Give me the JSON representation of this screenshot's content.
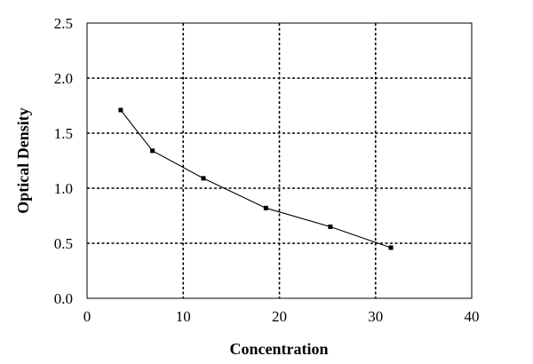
{
  "chart_data": {
    "type": "line",
    "title": "",
    "xlabel": "Concentration",
    "ylabel": "Optical Density",
    "xlim": [
      0,
      40
    ],
    "ylim": [
      0,
      2.5
    ],
    "x_ticks": [
      "0",
      "10",
      "20",
      "30",
      "40"
    ],
    "y_ticks": [
      "0.0",
      "0.5",
      "1.0",
      "1.5",
      "2.0",
      "2.5"
    ],
    "grid": true,
    "legend": false,
    "series": [
      {
        "x": [
          3.5,
          6.8,
          12.1,
          18.6,
          25.3,
          31.6
        ],
        "y": [
          1.71,
          1.34,
          1.09,
          0.82,
          0.65,
          0.46
        ]
      }
    ],
    "colors": {
      "line": "#000000",
      "marker": "#000000",
      "grid": "#000000"
    }
  }
}
